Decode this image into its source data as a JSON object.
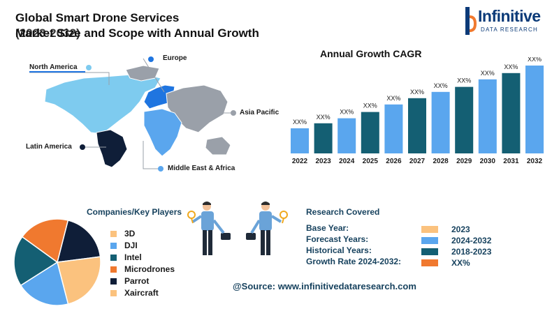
{
  "header": {
    "title_line1": "Global Smart Drone Services",
    "title_line2a": "Market Size and Scope with Annual Growth",
    "title_line2b": "(2023-2032)"
  },
  "logo": {
    "name": "Infinitive",
    "subtitle": "DATA RESEARCH"
  },
  "map": {
    "regions": [
      "North America",
      "Europe",
      "Asia Pacific",
      "Latin America",
      "Middle East & Africa"
    ],
    "colors": {
      "north_america": "#7ecbef",
      "europe": "#1f75e0",
      "asia_pacific": "#9aa0a9",
      "latin_america": "#0f1e38",
      "mea": "#5aa6ee"
    }
  },
  "chart_data": {
    "type": "bar",
    "title": "Annual Growth CAGR",
    "categories": [
      "2022",
      "2023",
      "2024",
      "2025",
      "2026",
      "2027",
      "2028",
      "2029",
      "2030",
      "2031",
      "2032"
    ],
    "values": [
      1.0,
      1.2,
      1.4,
      1.65,
      1.95,
      2.2,
      2.45,
      2.65,
      2.95,
      3.2,
      3.5
    ],
    "data_labels": [
      "XX%",
      "XX%",
      "XX%",
      "XX%",
      "XX%",
      "XX%",
      "XX%",
      "XX%",
      "XX%",
      "XX%",
      "XX%"
    ],
    "bar_colors": [
      "#5aa6ee",
      "#145f73",
      "#5aa6ee",
      "#145f73",
      "#5aa6ee",
      "#145f73",
      "#5aa6ee",
      "#145f73",
      "#5aa6ee",
      "#145f73",
      "#5aa6ee"
    ],
    "xlabel": "",
    "ylabel": "",
    "ylim": [
      0,
      3.5
    ],
    "grid": false
  },
  "companies": {
    "title": "Companies/Key Players",
    "items": [
      {
        "name": "3D",
        "color": "#fbc27e",
        "share": 0.23
      },
      {
        "name": "DJI",
        "color": "#5aa6ee",
        "share": 0.2
      },
      {
        "name": "Intel",
        "color": "#145f73",
        "share": 0.19
      },
      {
        "name": "Microdrones",
        "color": "#f0792f",
        "share": 0.19
      },
      {
        "name": "Parrot",
        "color": "#0f1e38",
        "share": 0.19
      },
      {
        "name": "Xaircraft",
        "color": "#fbc27e",
        "share": 0
      }
    ]
  },
  "research": {
    "title": "Research Covered",
    "rows": [
      {
        "label": "Base Year:",
        "value": "2023",
        "color": "#fbc27e"
      },
      {
        "label": "Forecast Years:",
        "value": "2024-2032",
        "color": "#5aa6ee"
      },
      {
        "label": "Historical Years:",
        "value": "2018-2023",
        "color": "#145f73"
      },
      {
        "label": "Growth Rate 2024-2032:",
        "value": "XX%",
        "color": "#f0792f"
      }
    ]
  },
  "source": "@Source: www.infinitivedataresearch.com"
}
